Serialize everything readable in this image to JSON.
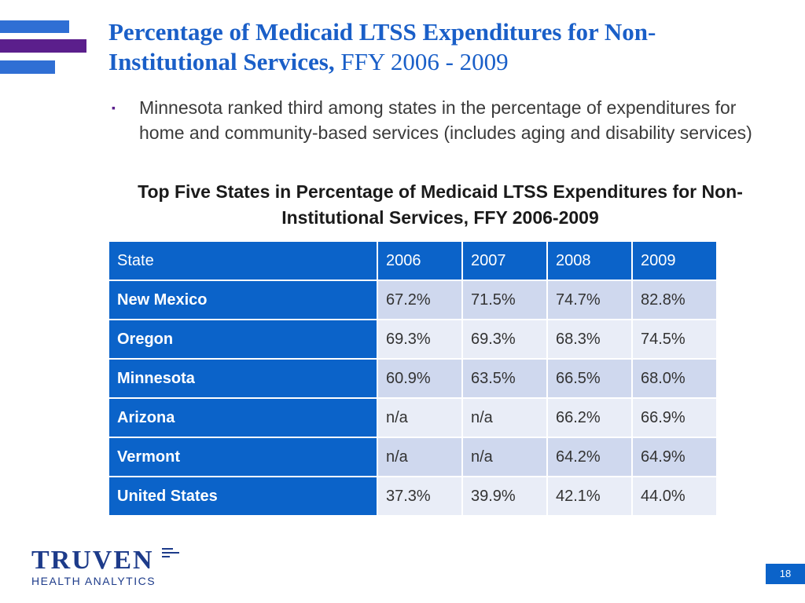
{
  "slide": {
    "title_bold": "Percentage of Medicaid LTSS Expenditures for Non-Institutional Services,",
    "title_normal": " FFY 2006 - 2009",
    "bullet": "Minnesota ranked third among states in the percentage of expenditures for home and community-based services (includes aging and disability services)",
    "bullet_marker": "▪",
    "table_title": "Top Five States in Percentage of Medicaid LTSS Expenditures for Non-Institutional Services, FFY 2006-2009",
    "page_number": "18"
  },
  "table": {
    "headers": [
      "State",
      "2006",
      "2007",
      "2008",
      "2009"
    ],
    "rows": [
      {
        "state": "New Mexico",
        "values": [
          "67.2%",
          "71.5%",
          "74.7%",
          "82.8%"
        ]
      },
      {
        "state": "Oregon",
        "values": [
          "69.3%",
          "69.3%",
          "68.3%",
          "74.5%"
        ]
      },
      {
        "state": "Minnesota",
        "values": [
          "60.9%",
          "63.5%",
          "66.5%",
          "68.0%"
        ]
      },
      {
        "state": "Arizona",
        "values": [
          "n/a",
          "n/a",
          "66.2%",
          "66.9%"
        ]
      },
      {
        "state": "Vermont",
        "values": [
          "n/a",
          "n/a",
          "64.2%",
          "64.9%"
        ]
      },
      {
        "state": "United States",
        "values": [
          "37.3%",
          "39.9%",
          "42.1%",
          "44.0%"
        ]
      }
    ]
  },
  "logo": {
    "name": "TRUVEN",
    "sub": "HEALTH ANALYTICS"
  },
  "colors": {
    "title_blue": "#1a5fc8",
    "header_blue": "#0b63c9",
    "purple": "#5b1f8c",
    "row_dark": "#cfd8ee",
    "row_light": "#e9edf7",
    "logo_navy": "#1d3b8a"
  }
}
